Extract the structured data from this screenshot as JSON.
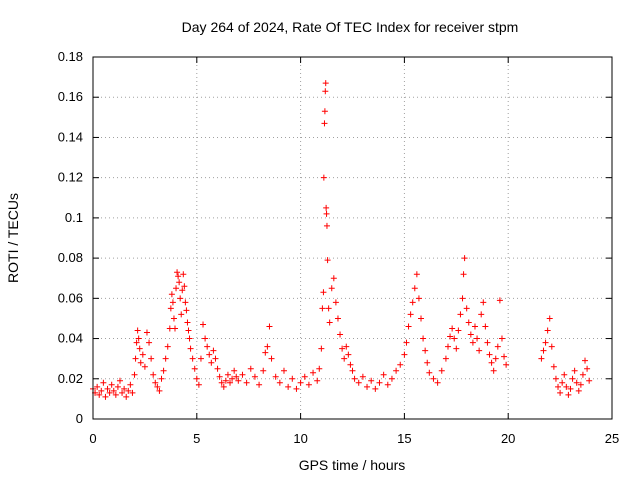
{
  "chart_data": {
    "type": "scatter",
    "title": "Day 264 of 2024, Rate Of TEC Index for receiver stpm",
    "xlabel": "GPS time / hours",
    "ylabel": "ROTI / TECUs",
    "xlim": [
      0,
      25
    ],
    "ylim": [
      0,
      0.18
    ],
    "x_ticks": [
      0,
      5,
      10,
      15,
      20,
      25
    ],
    "x_tick_labels": [
      "0",
      "5",
      "10",
      "15",
      "20",
      "25"
    ],
    "y_ticks": [
      0,
      0.02,
      0.04,
      0.06,
      0.08,
      0.1,
      0.12,
      0.14,
      0.16,
      0.18
    ],
    "y_tick_labels": [
      "0",
      "0.02",
      "0.04",
      "0.06",
      "0.08",
      "0.1",
      "0.12",
      "0.14",
      "0.16",
      "0.18"
    ],
    "grid": true,
    "marker": "+",
    "color": "#ff0000",
    "series": [
      {
        "name": "ROTI",
        "points": [
          [
            0.0,
            0.015
          ],
          [
            0.1,
            0.013
          ],
          [
            0.2,
            0.016
          ],
          [
            0.3,
            0.012
          ],
          [
            0.4,
            0.014
          ],
          [
            0.5,
            0.018
          ],
          [
            0.6,
            0.011
          ],
          [
            0.7,
            0.015
          ],
          [
            0.8,
            0.013
          ],
          [
            0.9,
            0.017
          ],
          [
            1.0,
            0.014
          ],
          [
            1.1,
            0.012
          ],
          [
            1.2,
            0.016
          ],
          [
            1.3,
            0.019
          ],
          [
            1.4,
            0.013
          ],
          [
            1.5,
            0.015
          ],
          [
            1.6,
            0.011
          ],
          [
            1.7,
            0.014
          ],
          [
            1.8,
            0.017
          ],
          [
            1.9,
            0.013
          ],
          [
            2.0,
            0.022
          ],
          [
            2.05,
            0.03
          ],
          [
            2.1,
            0.038
          ],
          [
            2.15,
            0.044
          ],
          [
            2.2,
            0.04
          ],
          [
            2.25,
            0.035
          ],
          [
            2.3,
            0.028
          ],
          [
            2.4,
            0.032
          ],
          [
            2.5,
            0.026
          ],
          [
            2.6,
            0.043
          ],
          [
            2.7,
            0.038
          ],
          [
            2.8,
            0.03
          ],
          [
            2.9,
            0.022
          ],
          [
            3.0,
            0.018
          ],
          [
            3.1,
            0.016
          ],
          [
            3.2,
            0.014
          ],
          [
            3.3,
            0.02
          ],
          [
            3.4,
            0.024
          ],
          [
            3.5,
            0.03
          ],
          [
            3.6,
            0.036
          ],
          [
            3.7,
            0.045
          ],
          [
            3.75,
            0.055
          ],
          [
            3.8,
            0.062
          ],
          [
            3.85,
            0.058
          ],
          [
            3.9,
            0.05
          ],
          [
            3.95,
            0.045
          ],
          [
            4.0,
            0.065
          ],
          [
            4.05,
            0.073
          ],
          [
            4.1,
            0.071
          ],
          [
            4.15,
            0.068
          ],
          [
            4.2,
            0.06
          ],
          [
            4.25,
            0.052
          ],
          [
            4.3,
            0.064
          ],
          [
            4.35,
            0.072
          ],
          [
            4.4,
            0.066
          ],
          [
            4.45,
            0.058
          ],
          [
            4.5,
            0.054
          ],
          [
            4.55,
            0.048
          ],
          [
            4.6,
            0.044
          ],
          [
            4.65,
            0.04
          ],
          [
            4.7,
            0.035
          ],
          [
            4.8,
            0.03
          ],
          [
            4.9,
            0.025
          ],
          [
            5.0,
            0.02
          ],
          [
            5.1,
            0.017
          ],
          [
            5.2,
            0.03
          ],
          [
            5.3,
            0.047
          ],
          [
            5.4,
            0.04
          ],
          [
            5.5,
            0.036
          ],
          [
            5.6,
            0.032
          ],
          [
            5.7,
            0.028
          ],
          [
            5.8,
            0.034
          ],
          [
            5.9,
            0.03
          ],
          [
            6.0,
            0.025
          ],
          [
            6.1,
            0.021
          ],
          [
            6.2,
            0.018
          ],
          [
            6.3,
            0.016
          ],
          [
            6.4,
            0.019
          ],
          [
            6.5,
            0.022
          ],
          [
            6.6,
            0.018
          ],
          [
            6.7,
            0.02
          ],
          [
            6.8,
            0.024
          ],
          [
            6.9,
            0.021
          ],
          [
            7.0,
            0.019
          ],
          [
            7.2,
            0.022
          ],
          [
            7.4,
            0.018
          ],
          [
            7.6,
            0.025
          ],
          [
            7.8,
            0.021
          ],
          [
            8.0,
            0.017
          ],
          [
            8.2,
            0.024
          ],
          [
            8.3,
            0.033
          ],
          [
            8.4,
            0.036
          ],
          [
            8.5,
            0.046
          ],
          [
            8.6,
            0.03
          ],
          [
            8.8,
            0.021
          ],
          [
            9.0,
            0.018
          ],
          [
            9.2,
            0.024
          ],
          [
            9.4,
            0.016
          ],
          [
            9.6,
            0.02
          ],
          [
            9.8,
            0.015
          ],
          [
            10.0,
            0.018
          ],
          [
            10.2,
            0.021
          ],
          [
            10.4,
            0.017
          ],
          [
            10.6,
            0.023
          ],
          [
            10.8,
            0.019
          ],
          [
            10.9,
            0.025
          ],
          [
            11.0,
            0.035
          ],
          [
            11.05,
            0.055
          ],
          [
            11.1,
            0.063
          ],
          [
            11.12,
            0.12
          ],
          [
            11.15,
            0.147
          ],
          [
            11.17,
            0.153
          ],
          [
            11.19,
            0.163
          ],
          [
            11.21,
            0.167
          ],
          [
            11.23,
            0.105
          ],
          [
            11.25,
            0.102
          ],
          [
            11.27,
            0.096
          ],
          [
            11.3,
            0.079
          ],
          [
            11.35,
            0.055
          ],
          [
            11.4,
            0.048
          ],
          [
            11.5,
            0.065
          ],
          [
            11.6,
            0.07
          ],
          [
            11.7,
            0.058
          ],
          [
            11.8,
            0.05
          ],
          [
            11.9,
            0.042
          ],
          [
            12.0,
            0.035
          ],
          [
            12.1,
            0.03
          ],
          [
            12.2,
            0.036
          ],
          [
            12.3,
            0.032
          ],
          [
            12.4,
            0.027
          ],
          [
            12.5,
            0.024
          ],
          [
            12.6,
            0.02
          ],
          [
            12.8,
            0.018
          ],
          [
            13.0,
            0.021
          ],
          [
            13.2,
            0.016
          ],
          [
            13.4,
            0.019
          ],
          [
            13.6,
            0.015
          ],
          [
            13.8,
            0.018
          ],
          [
            14.0,
            0.022
          ],
          [
            14.2,
            0.017
          ],
          [
            14.4,
            0.02
          ],
          [
            14.6,
            0.024
          ],
          [
            14.8,
            0.027
          ],
          [
            15.0,
            0.032
          ],
          [
            15.1,
            0.038
          ],
          [
            15.2,
            0.046
          ],
          [
            15.3,
            0.052
          ],
          [
            15.4,
            0.058
          ],
          [
            15.5,
            0.065
          ],
          [
            15.6,
            0.072
          ],
          [
            15.7,
            0.06
          ],
          [
            15.8,
            0.05
          ],
          [
            15.9,
            0.04
          ],
          [
            16.0,
            0.034
          ],
          [
            16.1,
            0.028
          ],
          [
            16.2,
            0.023
          ],
          [
            16.4,
            0.02
          ],
          [
            16.6,
            0.018
          ],
          [
            16.8,
            0.024
          ],
          [
            17.0,
            0.03
          ],
          [
            17.1,
            0.036
          ],
          [
            17.2,
            0.041
          ],
          [
            17.3,
            0.045
          ],
          [
            17.4,
            0.04
          ],
          [
            17.5,
            0.035
          ],
          [
            17.6,
            0.044
          ],
          [
            17.7,
            0.052
          ],
          [
            17.8,
            0.06
          ],
          [
            17.85,
            0.072
          ],
          [
            17.9,
            0.08
          ],
          [
            18.0,
            0.055
          ],
          [
            18.1,
            0.048
          ],
          [
            18.2,
            0.042
          ],
          [
            18.3,
            0.038
          ],
          [
            18.4,
            0.046
          ],
          [
            18.5,
            0.04
          ],
          [
            18.6,
            0.034
          ],
          [
            18.7,
            0.052
          ],
          [
            18.8,
            0.058
          ],
          [
            18.9,
            0.046
          ],
          [
            19.0,
            0.038
          ],
          [
            19.1,
            0.032
          ],
          [
            19.2,
            0.028
          ],
          [
            19.3,
            0.024
          ],
          [
            19.4,
            0.03
          ],
          [
            19.5,
            0.036
          ],
          [
            19.6,
            0.059
          ],
          [
            19.7,
            0.04
          ],
          [
            19.8,
            0.031
          ],
          [
            19.9,
            0.027
          ],
          [
            21.6,
            0.03
          ],
          [
            21.7,
            0.034
          ],
          [
            21.8,
            0.038
          ],
          [
            21.9,
            0.044
          ],
          [
            22.0,
            0.05
          ],
          [
            22.1,
            0.036
          ],
          [
            22.2,
            0.026
          ],
          [
            22.3,
            0.02
          ],
          [
            22.4,
            0.016
          ],
          [
            22.5,
            0.013
          ],
          [
            22.6,
            0.018
          ],
          [
            22.7,
            0.022
          ],
          [
            22.8,
            0.016
          ],
          [
            22.9,
            0.012
          ],
          [
            23.0,
            0.015
          ],
          [
            23.1,
            0.02
          ],
          [
            23.2,
            0.024
          ],
          [
            23.3,
            0.018
          ],
          [
            23.4,
            0.014
          ],
          [
            23.5,
            0.017
          ],
          [
            23.6,
            0.022
          ],
          [
            23.7,
            0.029
          ],
          [
            23.8,
            0.025
          ],
          [
            23.9,
            0.019
          ]
        ]
      }
    ]
  }
}
